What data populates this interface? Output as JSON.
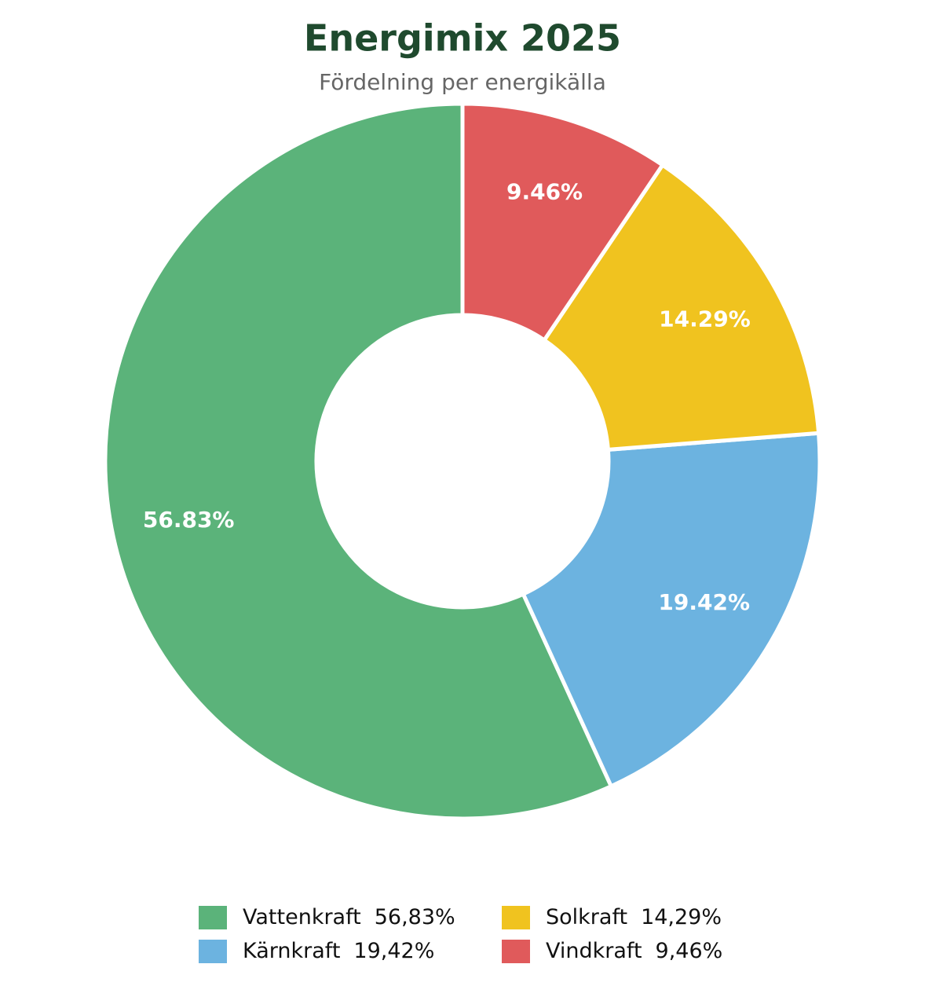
{
  "chart_data": {
    "type": "donut",
    "title": "Energimix 2025",
    "subtitle": "Fördelning per energikälla",
    "categories": [
      "Vattenkraft",
      "Kärnkraft",
      "Solkraft",
      "Vindkraft"
    ],
    "values": [
      56.83,
      19.42,
      14.29,
      9.46
    ],
    "value_labels": [
      "56.83%",
      "19.42%",
      "14.29%",
      "9.46%"
    ],
    "legend_value_labels": [
      "56,83%",
      "19,42%",
      "14,29%",
      "9,46%"
    ],
    "colors": [
      "#5bb37a",
      "#6cb3e0",
      "#f0c31f",
      "#e05a5b"
    ],
    "start_angle": 90,
    "counterclockwise": true,
    "legend_position": "bottom"
  }
}
